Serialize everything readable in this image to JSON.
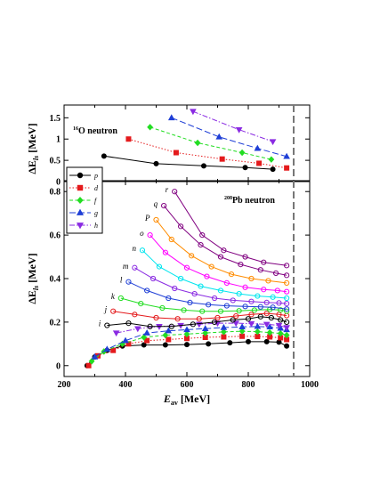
{
  "chart_data": [
    {
      "type": "line",
      "panel": "top",
      "title": "16O neutron",
      "ylabel": "ΔE_ls [MeV]",
      "xlim": [
        200,
        1000
      ],
      "ylim": [
        0,
        1.8
      ],
      "yticks": [
        "0",
        "0.5",
        "1",
        "1.5"
      ],
      "series": [
        {
          "name": "p",
          "marker": "circle",
          "color": "#000000",
          "dash": "solid",
          "x": [
            330,
            500,
            655,
            790,
            880
          ],
          "y": [
            0.6,
            0.42,
            0.37,
            0.33,
            0.29
          ]
        },
        {
          "name": "d",
          "marker": "square",
          "color": "#e41a1c",
          "dash": "dot",
          "x": [
            410,
            565,
            715,
            835,
            925
          ],
          "y": [
            1.0,
            0.68,
            0.53,
            0.43,
            0.32
          ]
        },
        {
          "name": "f",
          "marker": "diamond",
          "color": "#22dd22",
          "dash": "dash",
          "x": [
            480,
            635,
            780,
            875
          ],
          "y": [
            1.28,
            0.91,
            0.68,
            0.52
          ]
        },
        {
          "name": "g",
          "marker": "triangle-up",
          "color": "#1f3fd6",
          "dash": "longdash",
          "x": [
            550,
            705,
            830,
            925
          ],
          "y": [
            1.5,
            1.05,
            0.78,
            0.59
          ]
        },
        {
          "name": "h",
          "marker": "triangle-down",
          "color": "#8a2be2",
          "dash": "dashdot",
          "x": [
            620,
            770,
            880
          ],
          "y": [
            1.65,
            1.22,
            0.94
          ]
        }
      ]
    },
    {
      "type": "line",
      "panel": "bottom",
      "title": "208Pb neutron",
      "ylabel": "ΔE_ls [MeV]",
      "xlabel": "E_av [MeV]",
      "xlim": [
        200,
        1000
      ],
      "ylim": [
        -0.05,
        0.85
      ],
      "xticks": [
        "200",
        "400",
        "600",
        "800",
        "1000"
      ],
      "yticks": [
        "0",
        "0.2",
        "0.4",
        "0.6",
        "0.8"
      ],
      "legend": {
        "position": "upper-left",
        "entries": [
          "p",
          "d",
          "f",
          "g",
          "h"
        ]
      },
      "series": [
        {
          "name": "p",
          "marker": "circle",
          "filled": true,
          "color": "#000000",
          "dash": "solid",
          "x": [
            275,
            300,
            340,
            390,
            460,
            530,
            600,
            670,
            740,
            800,
            860,
            900,
            925
          ],
          "y": [
            0.0,
            0.04,
            0.07,
            0.09,
            0.095,
            0.095,
            0.097,
            0.1,
            0.105,
            0.11,
            0.11,
            0.108,
            0.09
          ]
        },
        {
          "name": "d",
          "marker": "square",
          "filled": true,
          "color": "#e41a1c",
          "dash": "dot",
          "x": [
            280,
            310,
            360,
            410,
            470,
            540,
            600,
            660,
            720,
            780,
            830,
            870,
            905,
            925
          ],
          "y": [
            0.0,
            0.045,
            0.07,
            0.1,
            0.115,
            0.12,
            0.125,
            0.13,
            0.132,
            0.135,
            0.134,
            0.132,
            0.128,
            0.12
          ]
        },
        {
          "name": "f",
          "marker": "diamond",
          "filled": true,
          "color": "#22dd22",
          "dash": "dash",
          "x": [
            290,
            330,
            390,
            460,
            530,
            600,
            660,
            720,
            780,
            830,
            870,
            905,
            925
          ],
          "y": [
            0.02,
            0.065,
            0.1,
            0.13,
            0.14,
            0.145,
            0.15,
            0.155,
            0.158,
            0.156,
            0.152,
            0.148,
            0.14
          ]
        },
        {
          "name": "g",
          "marker": "triangle-up",
          "filled": true,
          "color": "#1f3fd6",
          "dash": "longdash",
          "x": [
            300,
            340,
            400,
            470,
            540,
            600,
            660,
            720,
            780,
            830,
            870,
            905,
            925
          ],
          "y": [
            0.04,
            0.075,
            0.115,
            0.15,
            0.16,
            0.165,
            0.17,
            0.175,
            0.178,
            0.18,
            0.178,
            0.172,
            0.165
          ]
        },
        {
          "name": "h",
          "marker": "triangle-down",
          "filled": true,
          "color": "#8a2be2",
          "dash": "dashdot",
          "x": [
            370,
            440,
            510,
            580,
            640,
            700,
            760,
            810,
            860,
            900,
            925
          ],
          "y": [
            0.15,
            0.17,
            0.18,
            0.185,
            0.19,
            0.195,
            0.195,
            0.193,
            0.19,
            0.185,
            0.175
          ]
        },
        {
          "name": "i",
          "marker": "circle",
          "filled": false,
          "color": "#000000",
          "dash": "solid",
          "x": [
            340,
            410,
            480,
            550,
            620,
            690,
            750,
            800,
            840,
            875,
            905,
            925
          ],
          "y": [
            0.185,
            0.195,
            0.18,
            0.18,
            0.19,
            0.2,
            0.21,
            0.215,
            0.225,
            0.22,
            0.21,
            0.2
          ]
        },
        {
          "name": "j",
          "marker": "circle",
          "filled": false,
          "color": "#e41a1c",
          "dash": "solid",
          "x": [
            360,
            430,
            500,
            570,
            640,
            700,
            760,
            810,
            860,
            900,
            925
          ],
          "y": [
            0.25,
            0.235,
            0.22,
            0.215,
            0.215,
            0.22,
            0.228,
            0.235,
            0.24,
            0.235,
            0.23
          ]
        },
        {
          "name": "k",
          "marker": "circle",
          "filled": false,
          "color": "#22dd22",
          "dash": "solid",
          "x": [
            385,
            450,
            520,
            590,
            650,
            710,
            770,
            820,
            870,
            905,
            925
          ],
          "y": [
            0.31,
            0.285,
            0.265,
            0.255,
            0.25,
            0.25,
            0.252,
            0.255,
            0.258,
            0.256,
            0.25
          ]
        },
        {
          "name": "l",
          "marker": "circle",
          "filled": false,
          "color": "#1f3fd6",
          "dash": "solid",
          "x": [
            410,
            470,
            540,
            610,
            670,
            730,
            790,
            840,
            880,
            925
          ],
          "y": [
            0.385,
            0.345,
            0.31,
            0.29,
            0.28,
            0.275,
            0.272,
            0.27,
            0.268,
            0.26
          ]
        },
        {
          "name": "m",
          "marker": "circle",
          "filled": false,
          "color": "#8a2be2",
          "dash": "solid",
          "x": [
            430,
            490,
            560,
            625,
            690,
            750,
            810,
            860,
            900,
            925
          ],
          "y": [
            0.45,
            0.4,
            0.355,
            0.33,
            0.31,
            0.3,
            0.295,
            0.29,
            0.288,
            0.285
          ]
        },
        {
          "name": "n",
          "marker": "circle",
          "filled": false,
          "color": "#00e5ee",
          "dash": "solid",
          "x": [
            455,
            510,
            580,
            645,
            710,
            770,
            830,
            880,
            925
          ],
          "y": [
            0.53,
            0.455,
            0.4,
            0.365,
            0.345,
            0.33,
            0.32,
            0.315,
            0.31
          ]
        },
        {
          "name": "o",
          "marker": "circle",
          "filled": false,
          "color": "#ff00ff",
          "dash": "solid",
          "x": [
            480,
            530,
            600,
            665,
            730,
            790,
            850,
            895,
            925
          ],
          "y": [
            0.6,
            0.52,
            0.45,
            0.41,
            0.38,
            0.36,
            0.35,
            0.345,
            0.34
          ]
        },
        {
          "name": "P",
          "marker": "circle",
          "filled": false,
          "color": "#ff8c00",
          "dash": "solid",
          "x": [
            500,
            550,
            615,
            680,
            745,
            810,
            865,
            925
          ],
          "y": [
            0.67,
            0.58,
            0.505,
            0.455,
            0.42,
            0.4,
            0.39,
            0.38
          ]
        },
        {
          "name": "q",
          "marker": "circle",
          "filled": false,
          "color": "#800080",
          "dash": "solid",
          "x": [
            525,
            580,
            645,
            710,
            775,
            840,
            890,
            925
          ],
          "y": [
            0.735,
            0.64,
            0.555,
            0.5,
            0.465,
            0.44,
            0.425,
            0.415
          ]
        },
        {
          "name": "r",
          "marker": "circle",
          "filled": false,
          "color": "#800080",
          "dash": "solid",
          "x": [
            560,
            650,
            720,
            790,
            850,
            925
          ],
          "y": [
            0.8,
            0.6,
            0.53,
            0.5,
            0.475,
            0.46
          ]
        }
      ]
    }
  ]
}
